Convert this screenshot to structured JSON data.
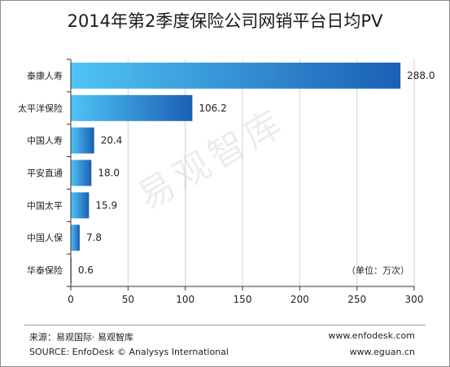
{
  "title": "2014年第2季度保险公司网销平台日均PV",
  "watermark": "易观智库",
  "unit_note": "（单位：万次）",
  "footer": {
    "source_cn": "来源：易观国际· 易观智库",
    "source_en": "SOURCE: EnfoDesk © Analysys International",
    "url1": "www.enfodesk.com",
    "url2": "www.eguan.cn"
  },
  "colors": {
    "bar_light": "#4fc4f5",
    "bar_dark": "#1b5fb4",
    "grid": "#d0d0d0",
    "frame": "#8c8c8c"
  },
  "chart_data": {
    "type": "bar",
    "orientation": "horizontal",
    "categories": [
      "泰康人寿",
      "太平洋保险",
      "中国人寿",
      "平安直通",
      "中国太平",
      "中国人保",
      "华泰保险"
    ],
    "values": [
      288.0,
      106.2,
      20.4,
      18.0,
      15.9,
      7.8,
      0.6
    ],
    "value_labels": [
      "288.0",
      "106.2",
      "20.4",
      "18.0",
      "15.9",
      "7.8",
      "0.6"
    ],
    "xlim": [
      0,
      300
    ],
    "xticks": [
      "0",
      "50",
      "100",
      "150",
      "200",
      "250",
      "300"
    ],
    "grid": true,
    "title": "2014年第2季度保险公司网销平台日均PV",
    "xlabel": "",
    "ylabel": ""
  }
}
